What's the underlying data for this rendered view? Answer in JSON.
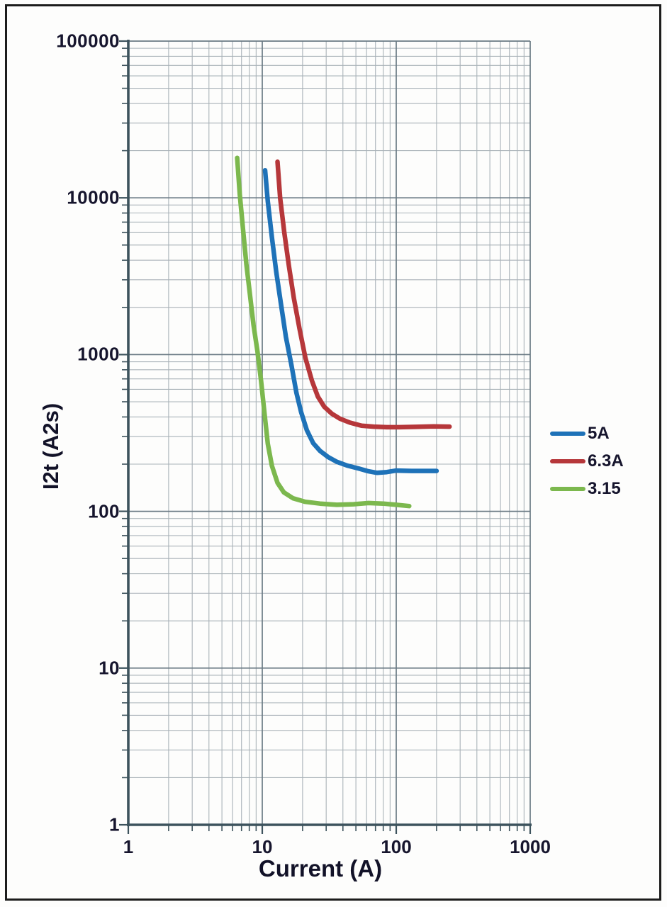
{
  "colors": {
    "series_blue": "#1e72b8",
    "series_red": "#b6373a",
    "series_green": "#7cb84e",
    "grid_minor": "#a9b2b8",
    "grid_major": "#6a7a84",
    "axis": "#3d535d",
    "text": "#16152d"
  },
  "x_axis": {
    "title": "Current (A)",
    "tick_labels": [
      "1",
      "10",
      "100",
      "1000"
    ],
    "tick_values": [
      1,
      10,
      100,
      1000
    ]
  },
  "y_axis": {
    "title": "I2t (A2s)",
    "tick_labels": [
      "1",
      "10",
      "100",
      "1000",
      "10000",
      "100000"
    ],
    "tick_values": [
      1,
      10,
      100,
      1000,
      10000,
      100000
    ]
  },
  "legend": {
    "items": [
      {
        "label": "5A",
        "color": "#1e72b8"
      },
      {
        "label": "6.3A",
        "color": "#b6373a"
      },
      {
        "label": "3.15",
        "color": "#7cb84e"
      }
    ]
  },
  "chart_data": {
    "type": "line",
    "x_scale": "log",
    "y_scale": "log",
    "xlabel": "Current (A)",
    "ylabel": "I2t (A2s)",
    "xlim": [
      1,
      1000
    ],
    "ylim": [
      1,
      100000
    ],
    "grid": "log-log major and minor gridlines",
    "legend_position": "right-outside",
    "series": [
      {
        "name": "5A",
        "color": "#1e72b8",
        "points": [
          [
            10.5,
            15000
          ],
          [
            11.0,
            9500
          ],
          [
            11.8,
            5600
          ],
          [
            12.7,
            3400
          ],
          [
            13.8,
            2100
          ],
          [
            15.0,
            1300
          ],
          [
            16.5,
            860
          ],
          [
            18.0,
            570
          ],
          [
            19.5,
            430
          ],
          [
            21.5,
            330
          ],
          [
            24.0,
            272
          ],
          [
            27.0,
            243
          ],
          [
            31.0,
            222
          ],
          [
            36.0,
            207
          ],
          [
            43.0,
            196
          ],
          [
            52.0,
            188
          ],
          [
            62.0,
            180
          ],
          [
            72.0,
            176
          ],
          [
            85.0,
            178
          ],
          [
            100.0,
            182
          ],
          [
            130.0,
            181
          ],
          [
            200.0,
            181
          ]
        ]
      },
      {
        "name": "6.3A",
        "color": "#b6373a",
        "points": [
          [
            13.0,
            17000
          ],
          [
            13.6,
            10000
          ],
          [
            14.6,
            6000
          ],
          [
            15.8,
            3700
          ],
          [
            17.2,
            2300
          ],
          [
            19.0,
            1450
          ],
          [
            21.0,
            950
          ],
          [
            23.5,
            680
          ],
          [
            26.0,
            540
          ],
          [
            29.0,
            465
          ],
          [
            33.0,
            420
          ],
          [
            38.0,
            390
          ],
          [
            45.0,
            368
          ],
          [
            55.0,
            352
          ],
          [
            68.0,
            347
          ],
          [
            85.0,
            344
          ],
          [
            105.0,
            344
          ],
          [
            140.0,
            346
          ],
          [
            190.0,
            348
          ],
          [
            250.0,
            347
          ]
        ]
      },
      {
        "name": "3.15",
        "color": "#7cb84e",
        "points": [
          [
            6.5,
            18000
          ],
          [
            6.8,
            10500
          ],
          [
            7.2,
            6200
          ],
          [
            7.6,
            3800
          ],
          [
            8.1,
            2400
          ],
          [
            8.6,
            1550
          ],
          [
            9.2,
            1050
          ],
          [
            9.8,
            680
          ],
          [
            10.4,
            420
          ],
          [
            11.0,
            270
          ],
          [
            11.8,
            195
          ],
          [
            13.0,
            152
          ],
          [
            14.5,
            132
          ],
          [
            17.0,
            121
          ],
          [
            21.0,
            115
          ],
          [
            27.0,
            112
          ],
          [
            36.0,
            110
          ],
          [
            48.0,
            111
          ],
          [
            62.0,
            113
          ],
          [
            80.0,
            112
          ],
          [
            100.0,
            110
          ],
          [
            125.0,
            108
          ]
        ]
      }
    ]
  }
}
